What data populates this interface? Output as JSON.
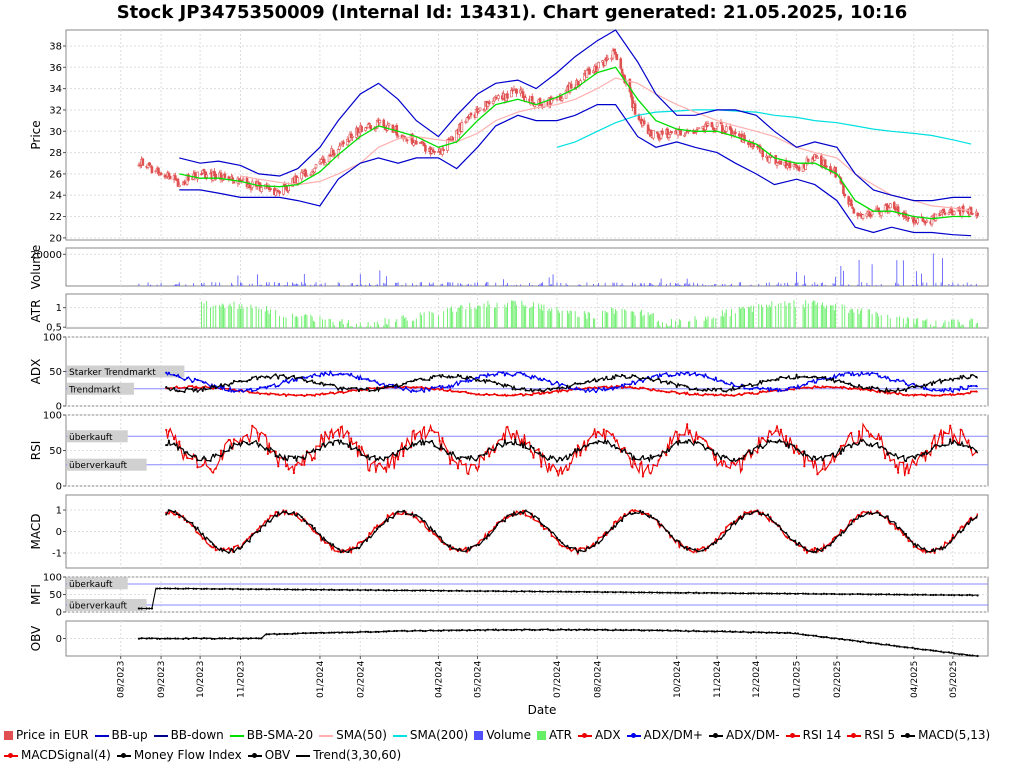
{
  "title": "Stock JP3475350009 (Internal Id: 13431). Chart generated: 21.05.2025, 10:16",
  "xlabel": "Date",
  "x_ticks": [
    "08/2023",
    "09/2023",
    "10/2023",
    "11/2023",
    "01/2024",
    "02/2024",
    "04/2024",
    "05/2024",
    "07/2024",
    "08/2024",
    "10/2024",
    "11/2024",
    "12/2024",
    "01/2025",
    "02/2025",
    "04/2025",
    "05/2025"
  ],
  "colors": {
    "price_up": "#e05050",
    "price_down": "#e05050",
    "bb": "#0000cc",
    "bb_sma": "#00dd00",
    "sma50": "#ffb0b0",
    "sma200": "#00e0e0",
    "volume": "#5050ff",
    "atr": "#66ee66",
    "adx": "#ee0000",
    "dmplus": "#0000ee",
    "dmminus": "#000000",
    "rsi14": "#ee0000",
    "rsi5": "#000000",
    "macd": "#000000",
    "signal": "#ee0000",
    "mfi": "#000000",
    "obv": "#000000",
    "ref": "#8888ff",
    "band_label": "#d0d0d0"
  },
  "panels": [
    {
      "id": "price",
      "ylabel": "Price",
      "yticks": [
        "20",
        "22",
        "24",
        "26",
        "28",
        "30",
        "32",
        "34",
        "36",
        "38"
      ]
    },
    {
      "id": "volume",
      "ylabel": "Volume",
      "yticks": [
        "20000"
      ]
    },
    {
      "id": "atr",
      "ylabel": "ATR",
      "yticks": [
        "0,5",
        "1"
      ]
    },
    {
      "id": "adx",
      "ylabel": "ADX",
      "yticks": [
        "0",
        "50",
        "100"
      ],
      "band_labels": [
        "Starker Trendmarkt",
        "Trendmarkt"
      ]
    },
    {
      "id": "rsi",
      "ylabel": "RSI",
      "yticks": [
        "0",
        "50",
        "100"
      ],
      "band_labels": [
        "überkauft",
        "überverkauft"
      ]
    },
    {
      "id": "macd",
      "ylabel": "MACD",
      "yticks": [
        "-1",
        "0",
        "1"
      ]
    },
    {
      "id": "mfi",
      "ylabel": "MFI",
      "yticks": [
        "0",
        "50",
        "100"
      ],
      "band_labels": [
        "überkauft",
        "überverkauft"
      ]
    },
    {
      "id": "obv",
      "ylabel": "OBV",
      "yticks": [
        "0"
      ]
    }
  ],
  "legend": [
    {
      "label": "Price in EUR",
      "color": "#e05050",
      "kind": "box"
    },
    {
      "label": "BB-up",
      "color": "#0000cc",
      "kind": "line"
    },
    {
      "label": "BB-down",
      "color": "#000088",
      "kind": "line"
    },
    {
      "label": "BB-SMA-20",
      "color": "#00dd00",
      "kind": "line"
    },
    {
      "label": "SMA(50)",
      "color": "#ffb0b0",
      "kind": "line"
    },
    {
      "label": "SMA(200)",
      "color": "#00e0e0",
      "kind": "line"
    },
    {
      "label": "Volume",
      "color": "#5050ff",
      "kind": "box"
    },
    {
      "label": "ATR",
      "color": "#66ee66",
      "kind": "box"
    },
    {
      "label": "ADX",
      "color": "#ee0000",
      "kind": "dot"
    },
    {
      "label": "ADX/DM+",
      "color": "#0000ee",
      "kind": "dot"
    },
    {
      "label": "ADX/DM-",
      "color": "#000000",
      "kind": "dot"
    },
    {
      "label": "RSI 14",
      "color": "#ee0000",
      "kind": "dot"
    },
    {
      "label": "RSI 5",
      "color": "#ee0000",
      "kind": "dot"
    },
    {
      "label": "MACD(5,13)",
      "color": "#000000",
      "kind": "dot"
    },
    {
      "label": "MACDSignal(4)",
      "color": "#ee0000",
      "kind": "dot"
    },
    {
      "label": "Money Flow Index",
      "color": "#000000",
      "kind": "dot"
    },
    {
      "label": "OBV",
      "color": "#000000",
      "kind": "dot"
    },
    {
      "label": "Trend(3,30,60)",
      "color": "#000000",
      "kind": "line"
    }
  ],
  "chart_data": {
    "type": "line",
    "title": "Stock JP3475350009 (Internal Id: 13431). Chart generated: 21.05.2025, 10:16",
    "xlabel": "Date",
    "ylabel": "Price",
    "ylim": [
      19.8,
      39.5
    ],
    "grid": true,
    "legend_position": "bottom",
    "x": [
      "2023-08-15",
      "2023-09-01",
      "2023-09-15",
      "2023-10-01",
      "2023-10-15",
      "2023-11-01",
      "2023-11-15",
      "2023-12-01",
      "2023-12-15",
      "2024-01-01",
      "2024-01-15",
      "2024-02-01",
      "2024-02-15",
      "2024-03-01",
      "2024-03-15",
      "2024-04-01",
      "2024-04-15",
      "2024-05-01",
      "2024-05-15",
      "2024-06-01",
      "2024-06-15",
      "2024-07-01",
      "2024-07-15",
      "2024-08-01",
      "2024-08-15",
      "2024-09-01",
      "2024-09-15",
      "2024-10-01",
      "2024-10-15",
      "2024-11-01",
      "2024-11-15",
      "2024-12-01",
      "2024-12-15",
      "2025-01-01",
      "2025-01-15",
      "2025-02-01",
      "2025-02-15",
      "2025-03-01",
      "2025-03-15",
      "2025-04-01",
      "2025-04-15",
      "2025-05-01",
      "2025-05-15"
    ],
    "series": [
      {
        "name": "Price in EUR",
        "values": [
          27.2,
          26.0,
          25.2,
          26.0,
          25.8,
          25.3,
          24.8,
          24.3,
          25.5,
          27.0,
          28.5,
          30.2,
          30.8,
          30.0,
          28.8,
          28.0,
          30.0,
          32.0,
          33.0,
          33.8,
          32.5,
          33.0,
          34.5,
          36.0,
          37.5,
          31.0,
          29.5,
          30.0,
          30.0,
          30.5,
          29.5,
          28.5,
          27.0,
          26.5,
          27.5,
          26.0,
          22.0,
          22.5,
          22.8,
          21.5,
          21.8,
          22.5,
          22.5
        ]
      },
      {
        "name": "BB-SMA-20",
        "values": [
          null,
          null,
          26.0,
          25.6,
          25.6,
          25.3,
          24.9,
          24.8,
          25.0,
          26.2,
          27.8,
          29.5,
          30.5,
          30.0,
          29.5,
          28.5,
          29.0,
          31.0,
          32.5,
          33.0,
          32.5,
          33.2,
          34.0,
          35.5,
          36.0,
          33.0,
          31.0,
          30.2,
          30.0,
          30.0,
          29.5,
          28.8,
          27.5,
          27.0,
          27.0,
          26.0,
          23.5,
          22.5,
          22.5,
          22.0,
          21.8,
          22.0,
          22.0
        ]
      },
      {
        "name": "SMA(50)",
        "values": [
          null,
          null,
          null,
          null,
          null,
          25.8,
          25.5,
          25.2,
          25.0,
          25.3,
          26.0,
          27.0,
          28.5,
          29.3,
          29.5,
          29.2,
          29.0,
          29.8,
          31.0,
          31.8,
          32.2,
          32.5,
          33.0,
          34.0,
          35.0,
          34.5,
          33.5,
          32.5,
          31.8,
          31.0,
          30.5,
          30.0,
          29.5,
          28.5,
          28.0,
          27.5,
          26.0,
          25.0,
          24.0,
          23.5,
          23.0,
          22.8,
          22.5
        ]
      },
      {
        "name": "SMA(200)",
        "values": [
          null,
          null,
          null,
          null,
          null,
          null,
          null,
          null,
          null,
          null,
          null,
          null,
          null,
          null,
          null,
          null,
          null,
          null,
          null,
          null,
          null,
          28.5,
          29.0,
          30.0,
          30.8,
          31.5,
          31.8,
          31.9,
          32.0,
          32.0,
          31.9,
          31.8,
          31.5,
          31.3,
          31.0,
          30.8,
          30.5,
          30.2,
          30.0,
          29.8,
          29.6,
          29.2,
          28.8
        ]
      },
      {
        "name": "BB-up",
        "values": [
          null,
          null,
          27.5,
          27.0,
          27.2,
          26.8,
          26.0,
          25.8,
          26.5,
          28.5,
          31.0,
          33.5,
          34.5,
          33.0,
          31.0,
          29.5,
          31.5,
          33.5,
          34.5,
          34.8,
          34.0,
          35.5,
          37.0,
          38.5,
          39.5,
          36.5,
          33.5,
          31.5,
          31.5,
          32.0,
          32.0,
          31.5,
          30.0,
          28.5,
          29.0,
          28.5,
          26.0,
          24.5,
          24.0,
          23.5,
          23.5,
          23.8,
          23.8
        ]
      },
      {
        "name": "BB-down",
        "values": [
          null,
          null,
          24.5,
          24.5,
          24.2,
          23.8,
          23.8,
          23.8,
          23.5,
          23.0,
          25.5,
          27.0,
          27.5,
          27.0,
          27.5,
          27.5,
          26.5,
          28.5,
          30.5,
          31.5,
          31.0,
          31.0,
          31.5,
          32.5,
          32.5,
          29.5,
          28.5,
          29.0,
          28.5,
          28.0,
          27.0,
          26.0,
          25.0,
          25.5,
          25.0,
          23.5,
          21.0,
          20.5,
          21.0,
          20.5,
          20.5,
          20.3,
          20.2
        ]
      }
    ]
  }
}
